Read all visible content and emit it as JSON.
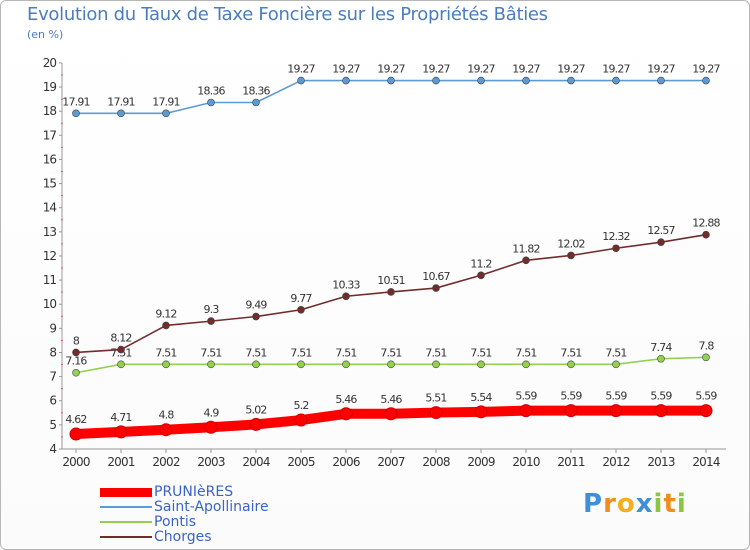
{
  "chart_data": {
    "type": "line",
    "title": "Evolution du Taux de Taxe Foncière sur les Propriétés Bâties",
    "unit_label": "(en %)",
    "xlabel": "",
    "ylabel": "",
    "x": [
      "2000",
      "2001",
      "2002",
      "2003",
      "2004",
      "2005",
      "2006",
      "2007",
      "2008",
      "2009",
      "2010",
      "2011",
      "2012",
      "2013",
      "2014"
    ],
    "yticks": [
      "4",
      "5",
      "6",
      "7",
      "8",
      "9",
      "10",
      "11",
      "12",
      "13",
      "14",
      "15",
      "16",
      "17",
      "18",
      "19",
      "20"
    ],
    "ylim": [
      4,
      20
    ],
    "grid": false,
    "series": [
      {
        "name": "PRUNIèRES",
        "color": "#ff0000",
        "values": [
          4.62,
          4.71,
          4.8,
          4.9,
          5.02,
          5.2,
          5.46,
          5.46,
          5.51,
          5.54,
          5.59,
          5.59,
          5.59,
          5.59,
          5.59
        ],
        "labels": [
          "4.62",
          "4.71",
          "4.8",
          "4.9",
          "5.02",
          "5.2",
          "5.46",
          "5.46",
          "5.51",
          "5.54",
          "5.59",
          "5.59",
          "5.59",
          "5.59",
          "5.59"
        ]
      },
      {
        "name": "Saint-Apollinaire",
        "color": "#5b9bd5",
        "values": [
          17.91,
          17.91,
          17.91,
          18.36,
          18.36,
          19.27,
          19.27,
          19.27,
          19.27,
          19.27,
          19.27,
          19.27,
          19.27,
          19.27,
          19.27
        ],
        "labels": [
          "17.91",
          "17.91",
          "17.91",
          "18.36",
          "18.36",
          "19.27",
          "19.27",
          "19.27",
          "19.27",
          "19.27",
          "19.27",
          "19.27",
          "19.27",
          "19.27",
          "19.27"
        ]
      },
      {
        "name": "Pontis",
        "color": "#92d050",
        "values": [
          7.16,
          7.51,
          7.51,
          7.51,
          7.51,
          7.51,
          7.51,
          7.51,
          7.51,
          7.51,
          7.51,
          7.51,
          7.51,
          7.74,
          7.8
        ],
        "labels": [
          "7.16",
          "7.51",
          "7.51",
          "7.51",
          "7.51",
          "7.51",
          "7.51",
          "7.51",
          "7.51",
          "7.51",
          "7.51",
          "7.51",
          "7.51",
          "7.74",
          "7.8"
        ]
      },
      {
        "name": "Chorges",
        "color": "#722c2c",
        "values": [
          8,
          8.12,
          9.12,
          9.3,
          9.49,
          9.77,
          10.33,
          10.51,
          10.67,
          11.2,
          11.82,
          12.02,
          12.32,
          12.57,
          12.88
        ],
        "labels": [
          "8",
          "8.12",
          "9.12",
          "9.3",
          "9.49",
          "9.77",
          "10.33",
          "10.51",
          "10.67",
          "11.2",
          "11.82",
          "12.02",
          "12.32",
          "12.57",
          "12.88"
        ]
      }
    ]
  },
  "legend": [
    "PRUNIèRES",
    "Saint-Apollinaire",
    "Pontis",
    "Chorges"
  ],
  "logo": {
    "text": "Proxiti",
    "letters": [
      "P",
      "r",
      "o",
      "x",
      "i",
      "t",
      "i"
    ]
  }
}
